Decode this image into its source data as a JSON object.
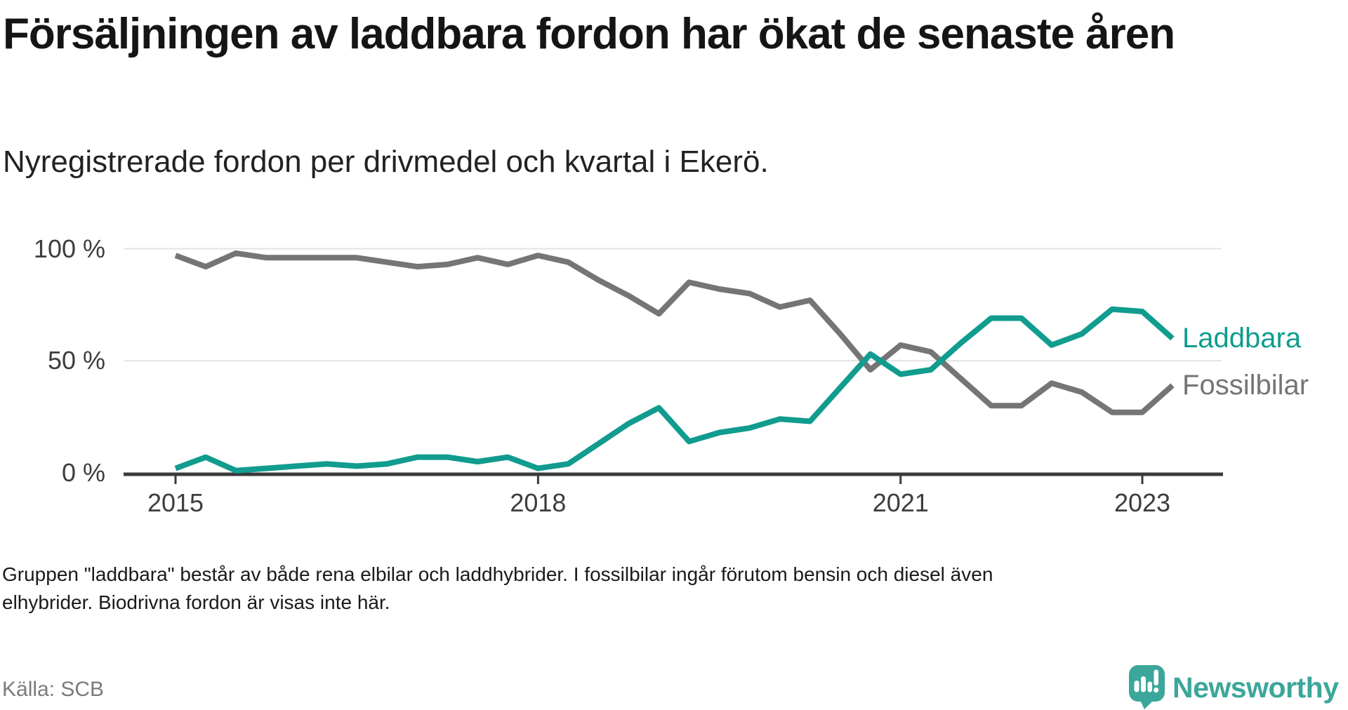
{
  "header": {
    "title": "Försäljningen av laddbara fordon har ökat de senaste åren",
    "subtitle": "Nyregistrerade fordon per drivmedel och kvartal i Ekerö."
  },
  "chart_data": {
    "type": "line",
    "title": "Försäljningen av laddbara fordon har ökat de senaste åren",
    "subtitle": "Nyregistrerade fordon per drivmedel och kvartal i Ekerö.",
    "x_unit": "quarter",
    "quarters": [
      "2015Q1",
      "2015Q2",
      "2015Q3",
      "2015Q4",
      "2016Q1",
      "2016Q2",
      "2016Q3",
      "2016Q4",
      "2017Q1",
      "2017Q2",
      "2017Q3",
      "2017Q4",
      "2018Q1",
      "2018Q2",
      "2018Q3",
      "2018Q4",
      "2019Q1",
      "2019Q2",
      "2019Q3",
      "2019Q4",
      "2020Q1",
      "2020Q2",
      "2020Q3",
      "2020Q4",
      "2021Q1",
      "2021Q2",
      "2021Q3",
      "2021Q4",
      "2022Q1",
      "2022Q2",
      "2022Q3",
      "2022Q4",
      "2023Q1",
      "2023Q2"
    ],
    "series": [
      {
        "name": "Laddbara",
        "color": "#109c8f",
        "unit": "%",
        "values": [
          2,
          7,
          1,
          2,
          3,
          4,
          3,
          4,
          7,
          7,
          5,
          7,
          2,
          4,
          13,
          22,
          29,
          14,
          18,
          20,
          24,
          23,
          38,
          53,
          44,
          46,
          58,
          69,
          69,
          57,
          62,
          73,
          72,
          60
        ]
      },
      {
        "name": "Fossilbilar",
        "color": "#757575",
        "unit": "%",
        "values": [
          97,
          92,
          98,
          96,
          96,
          96,
          96,
          94,
          92,
          93,
          96,
          93,
          97,
          94,
          86,
          79,
          71,
          85,
          82,
          80,
          74,
          77,
          62,
          46,
          57,
          54,
          42,
          30,
          30,
          40,
          36,
          27,
          27,
          39
        ]
      }
    ],
    "y_ticks": [
      {
        "label": "100 %",
        "value": 100
      },
      {
        "label": "50 %",
        "value": 50
      },
      {
        "label": "0 %",
        "value": 0
      }
    ],
    "x_ticks": [
      {
        "label": "2015",
        "index": 0
      },
      {
        "label": "2018",
        "index": 12
      },
      {
        "label": "2021",
        "index": 24
      },
      {
        "label": "2023",
        "index": 32
      }
    ],
    "ylim": [
      0,
      100
    ],
    "grid": "horizontal",
    "legend": "direct-labels-at-line-end"
  },
  "footer": {
    "note_line1": "Gruppen \"laddbara\" består av både rena elbilar och laddhybrider. I fossilbilar ingår förutom bensin och diesel även",
    "note_line2": "elhybrider. Biodrivna fordon är visas inte här.",
    "source": "Källa: SCB"
  },
  "branding": {
    "logo_text": "Newsworthy",
    "logo_color": "#3ba79a"
  }
}
